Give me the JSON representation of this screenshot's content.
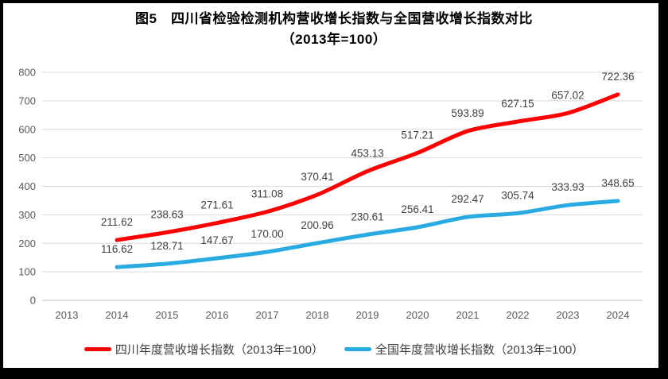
{
  "figure": {
    "frame_border_color": "#000000",
    "background_color": "#ffffff"
  },
  "chart_data": {
    "type": "line",
    "title": "图5　四川省检验检测机构营收增长指数与全国营收增长指数对比",
    "subtitle": "（2013年=100）",
    "categories": [
      "2013",
      "2014",
      "2015",
      "2016",
      "2017",
      "2018",
      "2019",
      "2020",
      "2021",
      "2022",
      "2023",
      "2024"
    ],
    "ylim": [
      0,
      800
    ],
    "yticks": [
      0,
      100,
      200,
      300,
      400,
      500,
      600,
      700,
      800
    ],
    "grid": true,
    "legend_position": "bottom",
    "series": [
      {
        "name": "四川年度营收增长指数（2013年=100）",
        "color": "#FF0000",
        "start_category": "2014",
        "values": [
          211.62,
          238.63,
          271.61,
          311.08,
          370.41,
          453.13,
          517.21,
          593.89,
          627.15,
          657.02,
          722.36
        ],
        "labels": [
          "211.62",
          "238.63",
          "271.61",
          "311.08",
          "370.41",
          "453.13",
          "517.21",
          "593.89",
          "627.15",
          "657.02",
          "722.36"
        ]
      },
      {
        "name": "全国年度营收增长指数（2013年=100）",
        "color": "#29ABE2",
        "start_category": "2014",
        "values": [
          116.62,
          128.71,
          147.67,
          170.0,
          200.96,
          230.61,
          256.41,
          292.47,
          305.74,
          333.93,
          348.65
        ],
        "labels": [
          "116.62",
          "128.71",
          "147.67",
          "170.00",
          "200.96",
          "230.61",
          "256.41",
          "292.47",
          "305.74",
          "333.93",
          "348.65"
        ]
      }
    ],
    "colors": {
      "gridline": "#D9D9D9",
      "axis_line": "#BFBFBF",
      "axis_label": "#595959",
      "data_label": "#404040",
      "title": "#000000"
    }
  }
}
